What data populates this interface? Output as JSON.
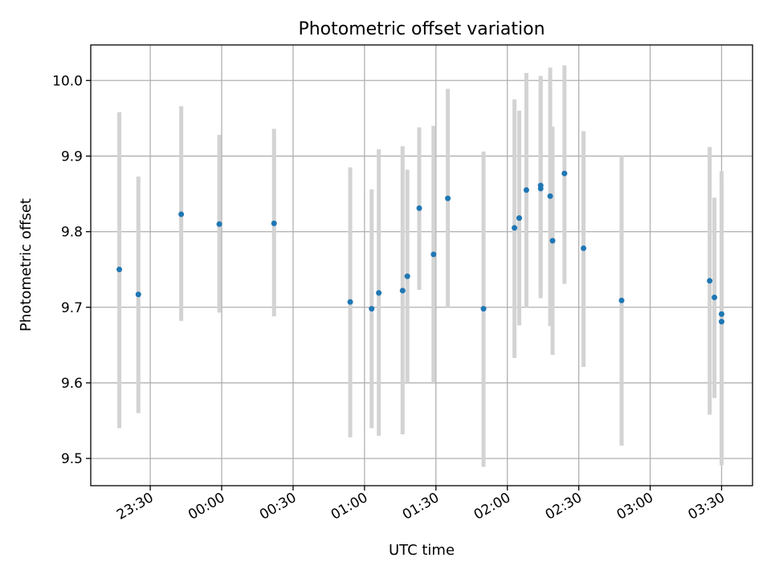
{
  "chart_data": {
    "type": "scatter",
    "title": "Photometric offset variation",
    "xlabel": "UTC time",
    "ylabel": "Photometric offset",
    "x_unit": "UTC time",
    "xlim": [
      "23:05",
      "03:43"
    ],
    "ylim": [
      9.464,
      10.047
    ],
    "grid": true,
    "x_ticks": [
      "23:30",
      "00:00",
      "00:30",
      "01:00",
      "01:30",
      "02:00",
      "02:30",
      "03:00",
      "03:30"
    ],
    "y_ticks": [
      "9.5",
      "9.6",
      "9.7",
      "9.8",
      "9.9",
      "10.0"
    ],
    "colors": {
      "points": "#1f77b4",
      "error_bars": "#d3d3d3",
      "grid": "#b0b0b0"
    },
    "points": [
      {
        "x": "23:17",
        "y": 9.75,
        "ylo": 9.54,
        "yhi": 9.958
      },
      {
        "x": "23:25",
        "y": 9.717,
        "ylo": 9.56,
        "yhi": 9.873
      },
      {
        "x": "23:43",
        "y": 9.823,
        "ylo": 9.682,
        "yhi": 9.966
      },
      {
        "x": "23:59",
        "y": 9.81,
        "ylo": 9.693,
        "yhi": 9.928
      },
      {
        "x": "00:22",
        "y": 9.811,
        "ylo": 9.688,
        "yhi": 9.936
      },
      {
        "x": "00:54",
        "y": 9.707,
        "ylo": 9.528,
        "yhi": 9.885
      },
      {
        "x": "01:03",
        "y": 9.698,
        "ylo": 9.54,
        "yhi": 9.856
      },
      {
        "x": "01:06",
        "y": 9.719,
        "ylo": 9.53,
        "yhi": 9.909
      },
      {
        "x": "01:16",
        "y": 9.722,
        "ylo": 9.532,
        "yhi": 9.913
      },
      {
        "x": "01:18",
        "y": 9.741,
        "ylo": 9.6,
        "yhi": 9.882
      },
      {
        "x": "01:23",
        "y": 9.831,
        "ylo": 9.723,
        "yhi": 9.938
      },
      {
        "x": "01:29",
        "y": 9.77,
        "ylo": 9.6,
        "yhi": 9.94
      },
      {
        "x": "01:35",
        "y": 9.844,
        "ylo": 9.7,
        "yhi": 9.989
      },
      {
        "x": "01:50",
        "y": 9.698,
        "ylo": 9.489,
        "yhi": 9.906
      },
      {
        "x": "02:03",
        "y": 9.805,
        "ylo": 9.633,
        "yhi": 9.975
      },
      {
        "x": "02:05",
        "y": 9.818,
        "ylo": 9.676,
        "yhi": 9.96
      },
      {
        "x": "02:08",
        "y": 9.855,
        "ylo": 9.7,
        "yhi": 10.01
      },
      {
        "x": "02:14",
        "y": 9.857,
        "ylo": 9.712,
        "yhi": 10.006
      },
      {
        "x": "02:14",
        "y": 9.861,
        "ylo": 9.716,
        "yhi": 10.0
      },
      {
        "x": "02:18",
        "y": 9.847,
        "ylo": 9.675,
        "yhi": 10.017
      },
      {
        "x": "02:19",
        "y": 9.788,
        "ylo": 9.637,
        "yhi": 9.939
      },
      {
        "x": "02:24",
        "y": 9.877,
        "ylo": 9.731,
        "yhi": 10.02
      },
      {
        "x": "02:32",
        "y": 9.778,
        "ylo": 9.621,
        "yhi": 9.933
      },
      {
        "x": "02:48",
        "y": 9.709,
        "ylo": 9.517,
        "yhi": 9.9
      },
      {
        "x": "03:25",
        "y": 9.735,
        "ylo": 9.558,
        "yhi": 9.912
      },
      {
        "x": "03:27",
        "y": 9.713,
        "ylo": 9.58,
        "yhi": 9.845
      },
      {
        "x": "03:30",
        "y": 9.691,
        "ylo": 9.503,
        "yhi": 9.88
      },
      {
        "x": "03:30",
        "y": 9.681,
        "ylo": 9.491,
        "yhi": 9.87
      }
    ]
  }
}
